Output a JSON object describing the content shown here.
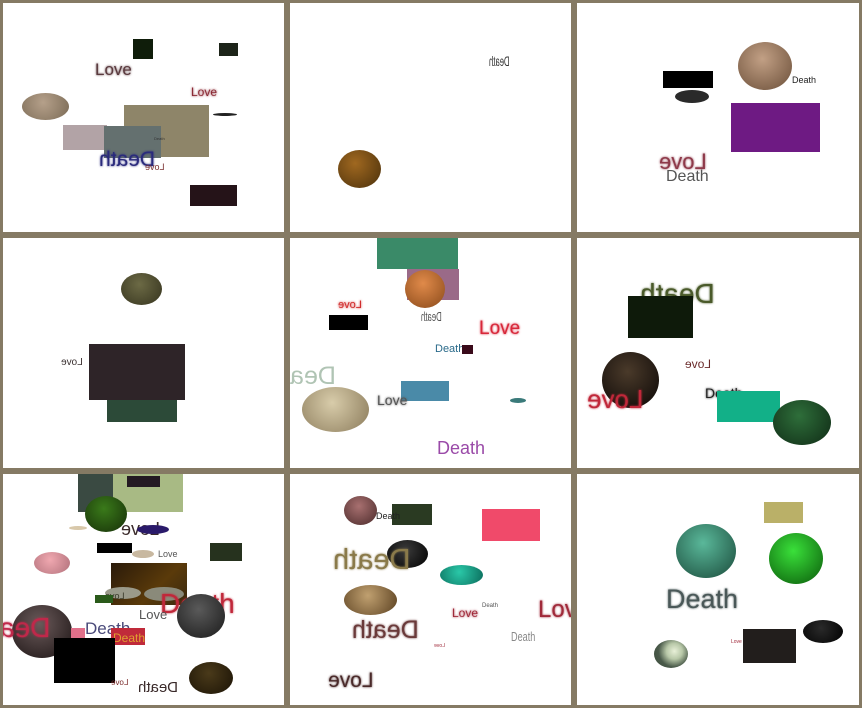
{
  "panels": [
    {
      "id": 1,
      "words": [
        "Love",
        "Love",
        "Death",
        "Love",
        "Death"
      ]
    },
    {
      "id": 2,
      "words": [
        "Death"
      ]
    },
    {
      "id": 3,
      "words": [
        "Death",
        "Love",
        "Death"
      ]
    },
    {
      "id": 4,
      "words": [
        "Love"
      ]
    },
    {
      "id": 5,
      "words": [
        "Love",
        "Death",
        "Love",
        "Death",
        "Dea",
        "Love",
        "Death"
      ]
    },
    {
      "id": 6,
      "words": [
        "Death",
        "Love",
        "Death",
        "Love"
      ]
    },
    {
      "id": 7,
      "words": [
        "Love",
        "Love",
        "Love",
        "Death",
        "Love",
        "Dea",
        "Death",
        "Death",
        "Love",
        "Death"
      ]
    },
    {
      "id": 8,
      "words": [
        "Death",
        "Death",
        "Death",
        "Love",
        "Lov",
        "Death",
        "Death",
        "Love",
        "Love"
      ]
    },
    {
      "id": 9,
      "words": [
        "Death",
        "Love"
      ]
    }
  ],
  "colors": {
    "background": "#857a64",
    "panel": "#ffffff"
  }
}
